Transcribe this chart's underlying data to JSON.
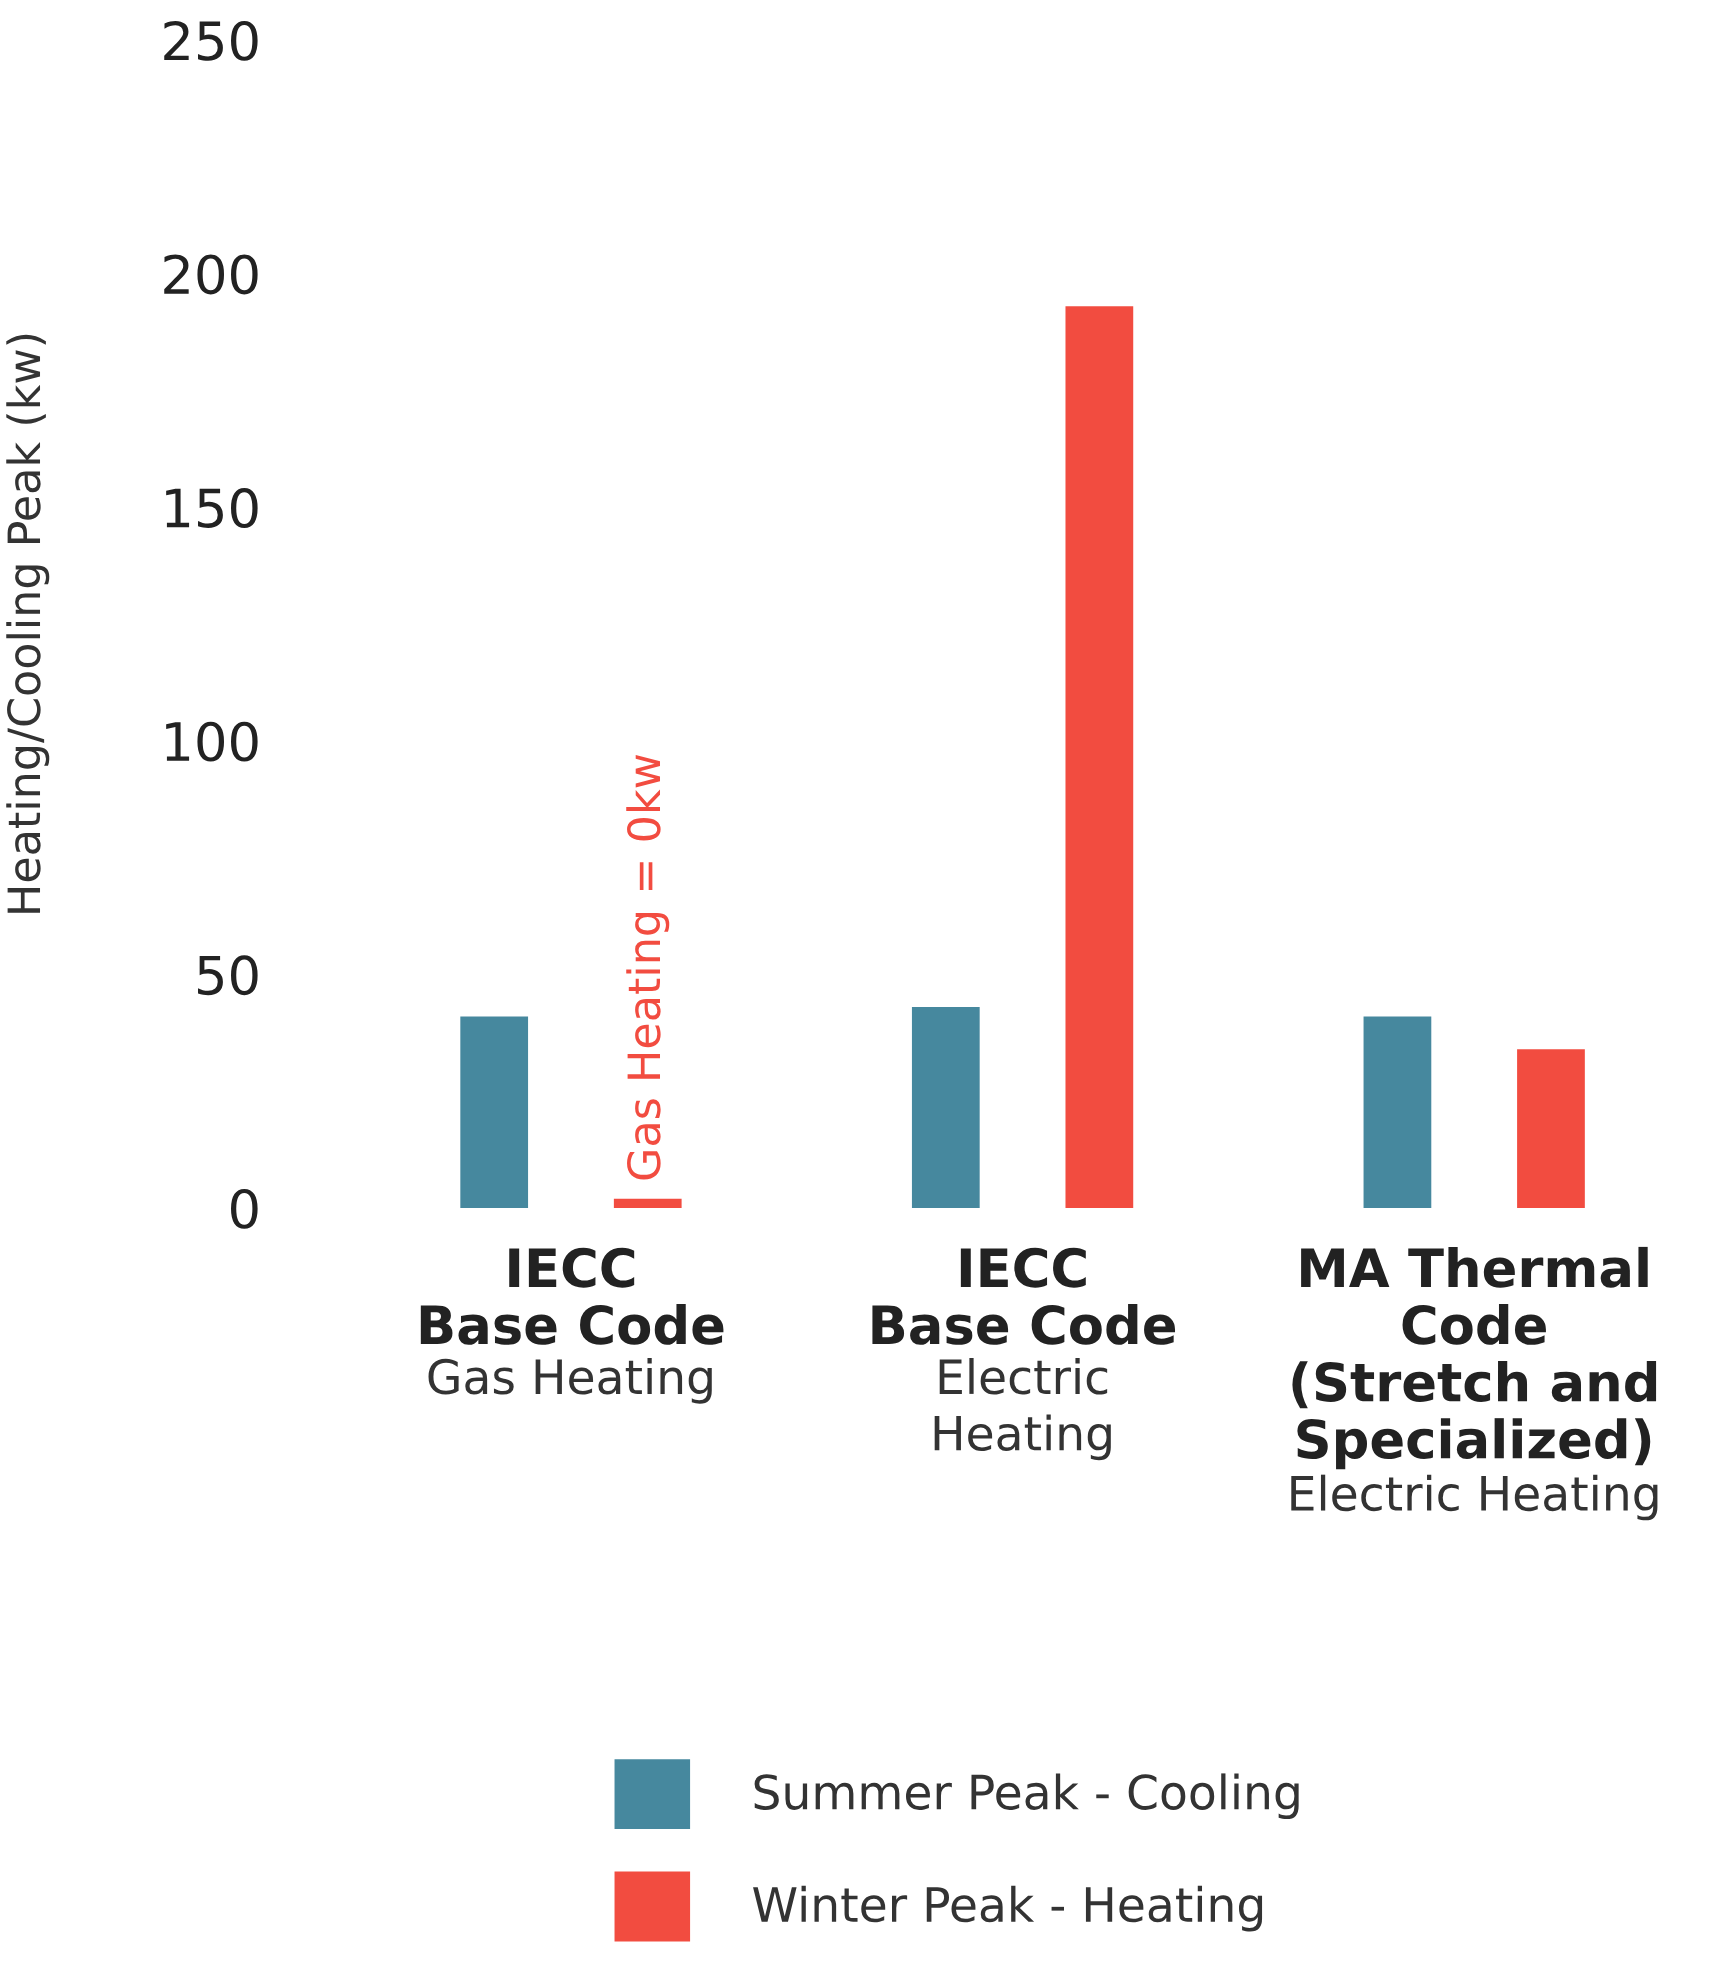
{
  "chart_data": {
    "type": "bar",
    "ylabel": "Heating/Cooling Peak (kw)",
    "categories": [
      "IECC\nBase Code",
      "IECC\nBase Code",
      "MA Thermal\nCode\n(Stretch and\nSpecialized)"
    ],
    "series": [
      {
        "name": "Summer Peak - Cooling",
        "color": "#46889e",
        "values": [
          41,
          43,
          41
        ]
      },
      {
        "name": "Winter Peak - Heating",
        "color": "#f24c40",
        "values": [
          2,
          193,
          34
        ]
      }
    ],
    "ylim": [
      0,
      250
    ],
    "yticks": [
      0,
      50,
      100,
      150,
      200,
      250
    ],
    "grid": false,
    "legend": "bottom",
    "annotations": [
      "Gas Heating = 0kw",
      "Gas Heating",
      "Electric\nHeating",
      "Electric Heating"
    ]
  }
}
